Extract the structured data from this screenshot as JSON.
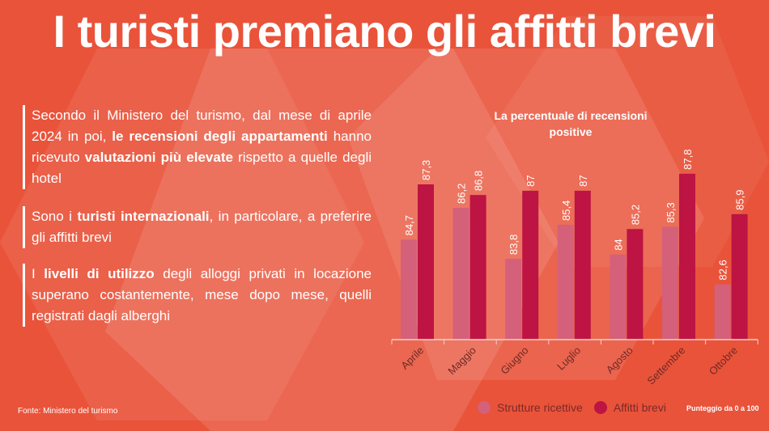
{
  "title": "I turisti premiano gli affitti brevi",
  "paragraphs": [
    [
      {
        "t": "Secondo il Ministero del turismo, dal mese di aprile 2024 in poi, ",
        "b": false
      },
      {
        "t": "le recensioni degli appartamenti",
        "b": true
      },
      {
        "t": " hanno ricevuto ",
        "b": false
      },
      {
        "t": "valutazioni più elevate",
        "b": true
      },
      {
        "t": " rispetto a quelle degli hotel",
        "b": false
      }
    ],
    [
      {
        "t": "Sono i ",
        "b": false
      },
      {
        "t": "turisti internazionali",
        "b": true
      },
      {
        "t": ", in particolare, a preferire gli affitti brevi",
        "b": false
      }
    ],
    [
      {
        "t": "I ",
        "b": false
      },
      {
        "t": "livelli di utilizzo",
        "b": true
      },
      {
        "t": " degli alloggi privati in locazione superano costantemente, mese dopo mese, quelli registrati dagli alberghi",
        "b": false
      }
    ]
  ],
  "source": "Fonte: Ministero del turismo",
  "unit_note": "Punteggio da 0 a 100",
  "colors": {
    "background": "#e9533a",
    "strutture": "#d4607a",
    "affitti": "#bd1443"
  },
  "chart_data": {
    "type": "bar",
    "title": "La percentuale di recensioni positive",
    "categories": [
      "Aprile",
      "Maggio",
      "Giugno",
      "Luglio",
      "Agosto",
      "Settembre",
      "Ottobre"
    ],
    "series": [
      {
        "name": "Strutture ricettive",
        "values": [
          84.7,
          86.2,
          83.8,
          85.4,
          84,
          85.3,
          82.6
        ],
        "labels": [
          "84,7",
          "86,2",
          "83,8",
          "85,4",
          "84",
          "85,3",
          "82,6"
        ]
      },
      {
        "name": "Affitti brevi",
        "values": [
          87.3,
          86.8,
          87,
          87,
          85.2,
          87.8,
          85.9
        ],
        "labels": [
          "87,3",
          "86,8",
          "87",
          "87",
          "85,2",
          "87,8",
          "85,9"
        ]
      }
    ],
    "ylim": [
      80,
      88.5
    ],
    "grid": false,
    "legend": "bottom-right"
  }
}
